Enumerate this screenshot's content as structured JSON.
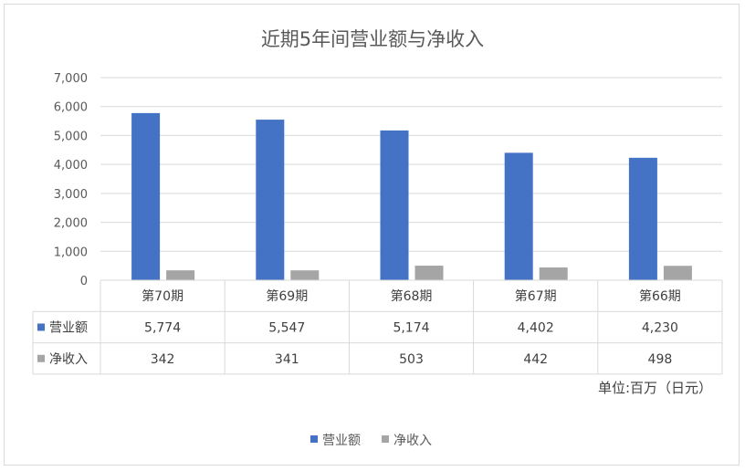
{
  "chart_data": {
    "type": "bar",
    "title": "近期5年间营业额与净收入",
    "categories": [
      "第70期",
      "第69期",
      "第68期",
      "第67期",
      "第66期"
    ],
    "series": [
      {
        "name": "营业额",
        "values": [
          5774,
          5547,
          5174,
          4402,
          4230
        ],
        "color": "#4472C4",
        "labels": [
          "5,774",
          "5,547",
          "5,174",
          "4,402",
          "4,230"
        ]
      },
      {
        "name": "净收入",
        "values": [
          342,
          341,
          503,
          442,
          498
        ],
        "color": "#A5A5A5",
        "labels": [
          "342",
          "341",
          "503",
          "442",
          "498"
        ]
      }
    ],
    "yticks": [
      "0",
      "1,000",
      "2,000",
      "3,000",
      "4,000",
      "5,000",
      "6,000",
      "7,000"
    ],
    "ylim": [
      0,
      7000
    ],
    "grid": true,
    "legend": "bottom",
    "data_table": true,
    "unit_note": "单位:百万（日元）"
  }
}
